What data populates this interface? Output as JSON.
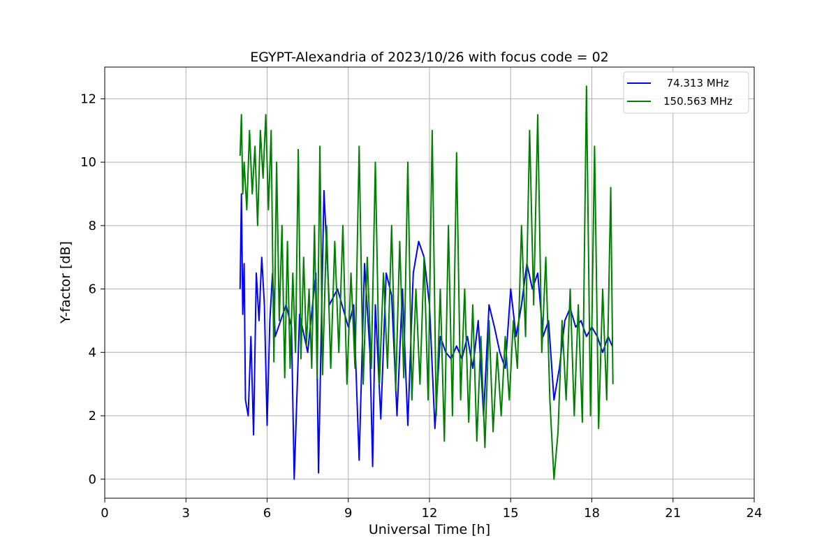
{
  "chart_data": {
    "type": "line",
    "title": "EGYPT-Alexandria of 2023/10/26 with focus code = 02",
    "xlabel": "Universal Time [h]",
    "ylabel": "Y-factor [dB]",
    "xlim": [
      0,
      24
    ],
    "ylim": [
      -0.6,
      13.0
    ],
    "x_ticks": [
      0,
      3,
      6,
      9,
      12,
      15,
      18,
      21,
      24
    ],
    "y_ticks": [
      0,
      2,
      4,
      6,
      8,
      10,
      12
    ],
    "grid": true,
    "legend_position": "top-right",
    "series": [
      {
        "name": "  74.313 MHz",
        "color": "#0000ff",
        "x": [
          5.0,
          5.05,
          5.1,
          5.15,
          5.2,
          5.3,
          5.4,
          5.5,
          5.6,
          5.7,
          5.8,
          5.9,
          6.0,
          6.1,
          6.2,
          6.3,
          6.5,
          6.7,
          6.9,
          7.0,
          7.2,
          7.5,
          7.8,
          7.9,
          8.1,
          8.3,
          8.6,
          9.0,
          9.2,
          9.4,
          9.6,
          9.8,
          9.9,
          10.0,
          10.2,
          10.4,
          10.6,
          10.8,
          11.0,
          11.2,
          11.4,
          11.6,
          11.8,
          12.0,
          12.2,
          12.4,
          12.6,
          12.8,
          13.0,
          13.2,
          13.4,
          13.6,
          13.8,
          14.0,
          14.2,
          14.4,
          14.6,
          14.8,
          15.0,
          15.2,
          15.4,
          15.6,
          15.8,
          16.0,
          16.2,
          16.4,
          16.6,
          16.8,
          17.0,
          17.2,
          17.4,
          17.6,
          17.8,
          18.0,
          18.2,
          18.4,
          18.6,
          18.75
        ],
        "y": [
          6.0,
          9.0,
          5.2,
          6.8,
          2.5,
          2.0,
          4.5,
          1.4,
          6.5,
          5.0,
          7.0,
          5.5,
          1.7,
          5.0,
          6.5,
          4.5,
          5.0,
          5.5,
          4.8,
          0.0,
          5.2,
          4.0,
          6.5,
          0.2,
          9.1,
          5.5,
          6.0,
          4.8,
          5.5,
          0.6,
          6.8,
          4.0,
          0.4,
          5.5,
          1.9,
          6.5,
          5.8,
          2.0,
          6.0,
          1.7,
          6.5,
          7.5,
          7.0,
          5.5,
          1.6,
          4.5,
          4.0,
          3.8,
          4.2,
          3.8,
          4.5,
          3.5,
          5.0,
          2.0,
          5.5,
          4.8,
          4.0,
          3.5,
          6.0,
          4.5,
          5.5,
          6.8,
          6.0,
          6.5,
          4.5,
          5.0,
          2.5,
          3.5,
          5.0,
          5.4,
          4.8,
          5.0,
          4.5,
          4.8,
          4.5,
          4.0,
          4.5,
          4.2
        ]
      },
      {
        "name": "150.563 MHz",
        "color": "#008000",
        "x": [
          5.0,
          5.05,
          5.1,
          5.15,
          5.25,
          5.35,
          5.45,
          5.55,
          5.65,
          5.75,
          5.85,
          5.95,
          6.05,
          6.15,
          6.25,
          6.35,
          6.45,
          6.55,
          6.65,
          6.75,
          6.85,
          6.95,
          7.05,
          7.15,
          7.25,
          7.35,
          7.45,
          7.55,
          7.65,
          7.75,
          7.85,
          7.95,
          8.05,
          8.2,
          8.35,
          8.5,
          8.65,
          8.8,
          8.95,
          9.1,
          9.25,
          9.4,
          9.55,
          9.7,
          9.85,
          10.0,
          10.15,
          10.3,
          10.45,
          10.6,
          10.75,
          10.9,
          11.05,
          11.2,
          11.35,
          11.5,
          11.65,
          11.8,
          11.95,
          12.1,
          12.25,
          12.4,
          12.55,
          12.7,
          12.85,
          13.0,
          13.15,
          13.3,
          13.45,
          13.6,
          13.75,
          13.9,
          14.05,
          14.2,
          14.35,
          14.5,
          14.65,
          14.8,
          14.95,
          15.1,
          15.25,
          15.4,
          15.55,
          15.7,
          15.85,
          16.0,
          16.15,
          16.3,
          16.45,
          16.6,
          16.75,
          16.9,
          17.05,
          17.2,
          17.35,
          17.5,
          17.65,
          17.8,
          17.95,
          18.1,
          18.25,
          18.4,
          18.55,
          18.7,
          18.78
        ],
        "y": [
          10.2,
          11.5,
          9.0,
          10.0,
          8.5,
          11.0,
          9.0,
          10.5,
          8.0,
          11.0,
          9.5,
          11.5,
          8.5,
          11.0,
          3.7,
          10.0,
          5.0,
          8.0,
          3.2,
          7.5,
          3.5,
          6.5,
          4.0,
          10.4,
          3.8,
          7.0,
          4.2,
          6.0,
          3.5,
          8.0,
          3.2,
          10.5,
          3.3,
          8.0,
          3.5,
          7.5,
          4.0,
          8.0,
          3.0,
          6.5,
          3.5,
          10.5,
          3.0,
          7.0,
          3.5,
          10.0,
          3.0,
          6.5,
          3.5,
          8.0,
          2.8,
          7.5,
          3.2,
          10.0,
          2.5,
          6.0,
          3.0,
          7.0,
          2.5,
          11.0,
          2.0,
          6.0,
          1.2,
          8.0,
          2.0,
          10.3,
          2.5,
          6.0,
          1.8,
          5.5,
          1.2,
          4.5,
          1.0,
          5.0,
          1.5,
          4.0,
          2.0,
          4.5,
          2.5,
          5.0,
          3.5,
          8.0,
          4.5,
          11.0,
          5.5,
          11.5,
          4.0,
          7.0,
          2.5,
          0.0,
          1.5,
          5.0,
          2.5,
          6.0,
          2.0,
          5.5,
          1.8,
          12.4,
          2.0,
          10.5,
          1.6,
          6.0,
          2.5,
          9.2,
          3.0
        ]
      }
    ]
  }
}
